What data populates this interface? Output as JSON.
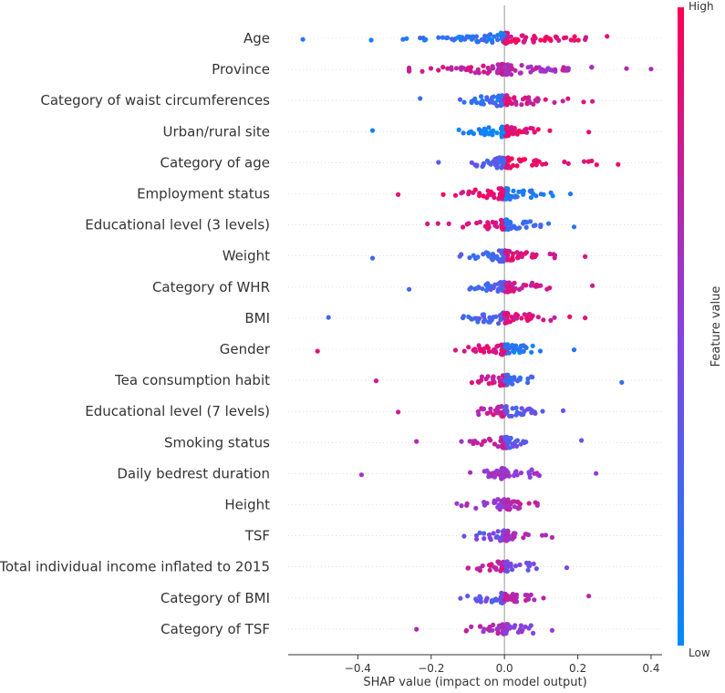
{
  "chart_data": {
    "type": "scatter",
    "subtype": "shap-beeswarm",
    "xlabel": "SHAP value (impact on model output)",
    "xlim": [
      -0.59,
      0.43
    ],
    "xticks": [
      -0.4,
      -0.2,
      0.0,
      0.2,
      0.4
    ],
    "xtick_labels": [
      "−0.4",
      "−0.2",
      "0.0",
      "0.2",
      "0.4"
    ],
    "colorbar": {
      "label": "Feature value",
      "high_label": "High",
      "low_label": "Low",
      "high_color": "#ff0052",
      "low_color": "#008bfb"
    },
    "features": [
      {
        "name": "Age",
        "min": -0.55,
        "max": 0.28,
        "neg_spread": 0.37,
        "pos_spread": 0.24,
        "neg_hue": 0.15,
        "pos_hue": 0.88,
        "density": 130
      },
      {
        "name": "Province",
        "min": -0.26,
        "max": 0.4,
        "neg_spread": 0.24,
        "pos_spread": 0.25,
        "neg_hue": 0.75,
        "pos_hue": 0.65,
        "density": 120
      },
      {
        "name": "Category of waist circumferences",
        "min": -0.23,
        "max": 0.24,
        "neg_spread": 0.16,
        "pos_spread": 0.18,
        "neg_hue": 0.2,
        "pos_hue": 0.8,
        "density": 85
      },
      {
        "name": "Urban/rural  site",
        "min": -0.36,
        "max": 0.23,
        "neg_spread": 0.14,
        "pos_spread": 0.12,
        "neg_hue": 0.05,
        "pos_hue": 0.9,
        "density": 80
      },
      {
        "name": "Category of age",
        "min": -0.18,
        "max": 0.31,
        "neg_spread": 0.1,
        "pos_spread": 0.25,
        "neg_hue": 0.3,
        "pos_hue": 0.92,
        "density": 70
      },
      {
        "name": "Employment status",
        "min": -0.29,
        "max": 0.18,
        "neg_spread": 0.15,
        "pos_spread": 0.16,
        "neg_hue": 0.9,
        "pos_hue": 0.1,
        "density": 85
      },
      {
        "name": "Educational level (3 levels)",
        "min": -0.21,
        "max": 0.19,
        "neg_spread": 0.16,
        "pos_spread": 0.14,
        "neg_hue": 0.85,
        "pos_hue": 0.15,
        "density": 75
      },
      {
        "name": "Weight",
        "min": -0.36,
        "max": 0.22,
        "neg_spread": 0.12,
        "pos_spread": 0.15,
        "neg_hue": 0.25,
        "pos_hue": 0.85,
        "density": 80
      },
      {
        "name": "Category of WHR",
        "min": -0.26,
        "max": 0.24,
        "neg_spread": 0.13,
        "pos_spread": 0.16,
        "neg_hue": 0.25,
        "pos_hue": 0.8,
        "density": 80
      },
      {
        "name": "BMI",
        "min": -0.48,
        "max": 0.22,
        "neg_spread": 0.1,
        "pos_spread": 0.15,
        "neg_hue": 0.25,
        "pos_hue": 0.85,
        "density": 80
      },
      {
        "name": "Gender",
        "min": -0.51,
        "max": 0.19,
        "neg_spread": 0.13,
        "pos_spread": 0.11,
        "neg_hue": 0.88,
        "pos_hue": 0.12,
        "density": 75
      },
      {
        "name": "Tea consumption habit",
        "min": -0.35,
        "max": 0.32,
        "neg_spread": 0.09,
        "pos_spread": 0.08,
        "neg_hue": 0.8,
        "pos_hue": 0.2,
        "density": 60
      },
      {
        "name": "Educational level (7 levels)",
        "min": -0.29,
        "max": 0.16,
        "neg_spread": 0.1,
        "pos_spread": 0.11,
        "neg_hue": 0.75,
        "pos_hue": 0.35,
        "density": 65
      },
      {
        "name": "Smoking status",
        "min": -0.24,
        "max": 0.21,
        "neg_spread": 0.1,
        "pos_spread": 0.1,
        "neg_hue": 0.7,
        "pos_hue": 0.35,
        "density": 60
      },
      {
        "name": "Daily bedrest duration",
        "min": -0.39,
        "max": 0.25,
        "neg_spread": 0.1,
        "pos_spread": 0.12,
        "neg_hue": 0.6,
        "pos_hue": 0.55,
        "density": 60
      },
      {
        "name": "Height",
        "min": -0.13,
        "max": 0.09,
        "neg_spread": 0.12,
        "pos_spread": 0.08,
        "neg_hue": 0.55,
        "pos_hue": 0.7,
        "density": 60
      },
      {
        "name": "TSF",
        "min": -0.11,
        "max": 0.13,
        "neg_spread": 0.1,
        "pos_spread": 0.11,
        "neg_hue": 0.4,
        "pos_hue": 0.65,
        "density": 60
      },
      {
        "name": "Total individual income inflated to 2015",
        "min": -0.1,
        "max": 0.17,
        "neg_spread": 0.09,
        "pos_spread": 0.08,
        "neg_hue": 0.75,
        "pos_hue": 0.45,
        "density": 55
      },
      {
        "name": "Category of BMI",
        "min": -0.12,
        "max": 0.23,
        "neg_spread": 0.1,
        "pos_spread": 0.1,
        "neg_hue": 0.35,
        "pos_hue": 0.7,
        "density": 60
      },
      {
        "name": "Category of TSF",
        "min": -0.24,
        "max": 0.13,
        "neg_spread": 0.12,
        "pos_spread": 0.09,
        "neg_hue": 0.65,
        "pos_hue": 0.55,
        "density": 60
      }
    ]
  }
}
